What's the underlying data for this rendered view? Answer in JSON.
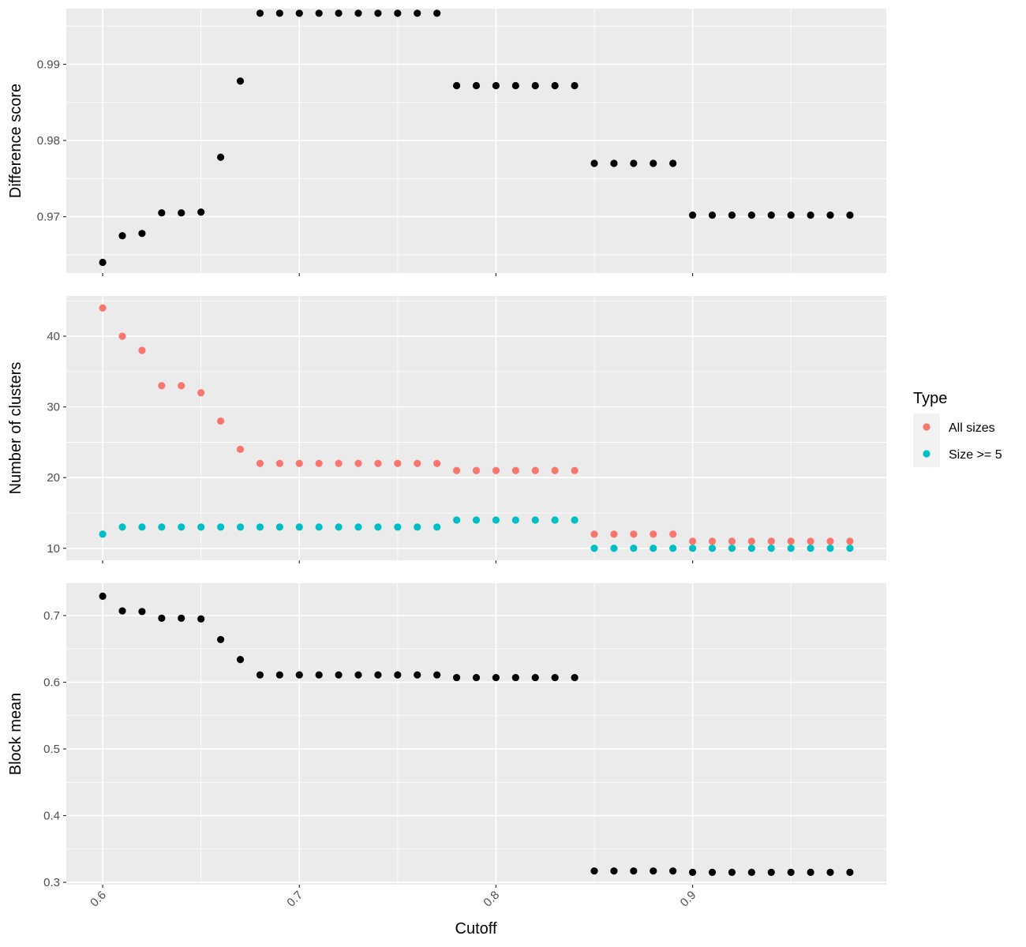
{
  "chart_data": {
    "type": "scatter",
    "xlabel": "Cutoff",
    "x_ticks": [
      0.6,
      0.7,
      0.8,
      0.9
    ],
    "x_tick_labels": [
      "0.6",
      "0.7",
      "0.8",
      "0.9"
    ],
    "xlim": [
      0.5815,
      0.9985
    ],
    "x": [
      0.6,
      0.61,
      0.62,
      0.63,
      0.64,
      0.65,
      0.66,
      0.67,
      0.68,
      0.69,
      0.7,
      0.71,
      0.72,
      0.73,
      0.74,
      0.75,
      0.76,
      0.77,
      0.78,
      0.79,
      0.8,
      0.81,
      0.82,
      0.83,
      0.84,
      0.85,
      0.86,
      0.87,
      0.88,
      0.89,
      0.9,
      0.91,
      0.92,
      0.93,
      0.94,
      0.95,
      0.96,
      0.97,
      0.98
    ],
    "background": "#ebebeb",
    "grid_color": "#ffffff",
    "legend": {
      "title": "Type",
      "placement": "right",
      "entries": [
        {
          "label": "All sizes",
          "color": "#F8766D"
        },
        {
          "label": "Size >= 5",
          "color": "#00BFC4"
        }
      ]
    },
    "panels": [
      {
        "ylabel": "Difference score",
        "ylim": [
          0.9626,
          0.9973
        ],
        "y_ticks": [
          0.97,
          0.98,
          0.99
        ],
        "y_tick_labels": [
          "0.97",
          "0.98",
          "0.99"
        ],
        "series": [
          {
            "color": "#000000",
            "values": [
              0.964,
              0.9675,
              0.9678,
              0.9705,
              0.9705,
              0.9706,
              0.9778,
              0.9878,
              0.9967,
              0.9967,
              0.9967,
              0.9967,
              0.9967,
              0.9967,
              0.9967,
              0.9967,
              0.9967,
              0.9967,
              0.9872,
              0.9872,
              0.9872,
              0.9872,
              0.9872,
              0.9872,
              0.9872,
              0.977,
              0.977,
              0.977,
              0.977,
              0.977,
              0.9702,
              0.9702,
              0.9702,
              0.9702,
              0.9702,
              0.9702,
              0.9702,
              0.9702,
              0.9702
            ]
          }
        ]
      },
      {
        "ylabel": "Number of clusters",
        "ylim": [
          8.3,
          45.7
        ],
        "y_ticks": [
          10,
          20,
          30,
          40
        ],
        "y_tick_labels": [
          "10",
          "20",
          "30",
          "40"
        ],
        "series": [
          {
            "name": "All sizes",
            "color": "#F8766D",
            "values": [
              44,
              40,
              38,
              33,
              33,
              32,
              28,
              24,
              22,
              22,
              22,
              22,
              22,
              22,
              22,
              22,
              22,
              22,
              21,
              21,
              21,
              21,
              21,
              21,
              21,
              12,
              12,
              12,
              12,
              12,
              11,
              11,
              11,
              11,
              11,
              11,
              11,
              11,
              11
            ]
          },
          {
            "name": "Size >= 5",
            "color": "#00BFC4",
            "values": [
              12,
              13,
              13,
              13,
              13,
              13,
              13,
              13,
              13,
              13,
              13,
              13,
              13,
              13,
              13,
              13,
              13,
              13,
              14,
              14,
              14,
              14,
              14,
              14,
              14,
              10,
              10,
              10,
              10,
              10,
              10,
              10,
              10,
              10,
              10,
              10,
              10,
              10,
              10
            ]
          }
        ]
      },
      {
        "ylabel": "Block mean",
        "ylim": [
          0.2965,
          0.7485
        ],
        "y_ticks": [
          0.3,
          0.4,
          0.5,
          0.6,
          0.7
        ],
        "y_tick_labels": [
          "0.3",
          "0.4",
          "0.5",
          "0.6",
          "0.7"
        ],
        "series": [
          {
            "color": "#000000",
            "values": [
              0.729,
              0.707,
              0.706,
              0.696,
              0.696,
              0.695,
              0.664,
              0.634,
              0.611,
              0.611,
              0.611,
              0.611,
              0.611,
              0.611,
              0.611,
              0.611,
              0.611,
              0.611,
              0.607,
              0.607,
              0.607,
              0.607,
              0.607,
              0.607,
              0.607,
              0.317,
              0.317,
              0.317,
              0.317,
              0.317,
              0.315,
              0.315,
              0.315,
              0.315,
              0.315,
              0.315,
              0.315,
              0.315,
              0.315
            ]
          }
        ]
      }
    ]
  }
}
